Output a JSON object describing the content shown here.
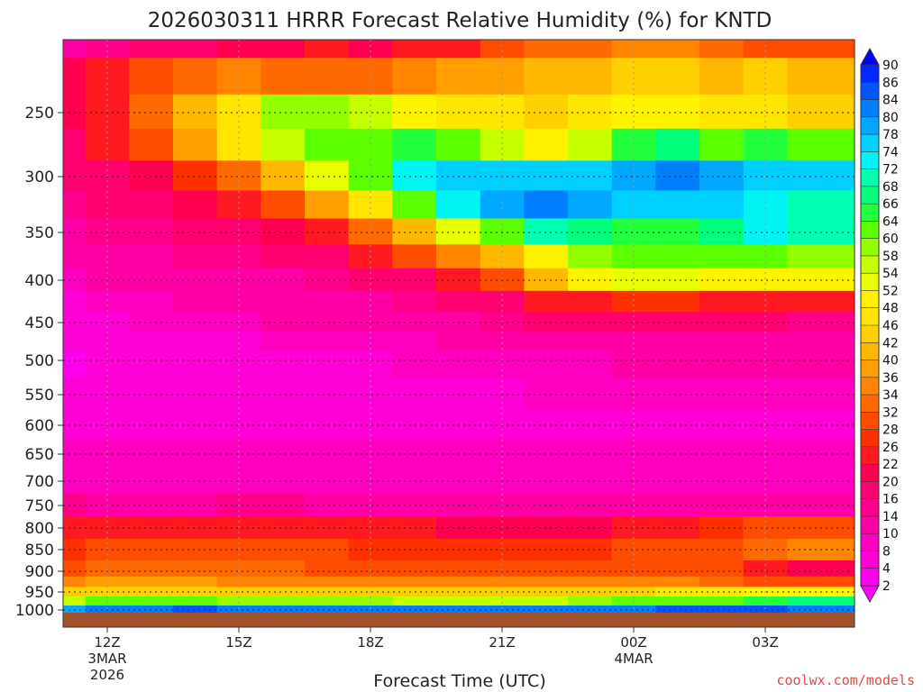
{
  "chart_data": {
    "type": "heatmap",
    "title": "2026030311 HRRR Forecast Relative Humidity (%) for KNTD",
    "xlabel": "Forecast Time (UTC)",
    "ylabel": "",
    "y_axis_scale": "pressure (inverted, log-like)",
    "y_ticks": [
      250,
      300,
      350,
      400,
      450,
      500,
      550,
      600,
      650,
      700,
      750,
      800,
      850,
      900,
      950,
      1000
    ],
    "x_ticks": [
      {
        "label": "12Z",
        "sub1": "3MAR",
        "sub2": "2026"
      },
      {
        "label": "15Z",
        "sub1": "",
        "sub2": ""
      },
      {
        "label": "18Z",
        "sub1": "",
        "sub2": ""
      },
      {
        "label": "21Z",
        "sub1": "",
        "sub2": ""
      },
      {
        "label": "00Z",
        "sub1": "4MAR",
        "sub2": ""
      },
      {
        "label": "03Z",
        "sub1": "",
        "sub2": ""
      }
    ],
    "x_hours": [
      11,
      12,
      13,
      14,
      15,
      16,
      17,
      18,
      19,
      20,
      21,
      22,
      23,
      24,
      25,
      26,
      27,
      28
    ],
    "pressure_levels": [
      200,
      225,
      250,
      275,
      300,
      325,
      350,
      375,
      400,
      425,
      450,
      475,
      500,
      550,
      600,
      650,
      700,
      750,
      800,
      850,
      900,
      925,
      950,
      975,
      1000
    ],
    "rh_values": [
      [
        12,
        14,
        16,
        16,
        20,
        20,
        22,
        20,
        24,
        24,
        28,
        32,
        32,
        34,
        34,
        32,
        30,
        28
      ],
      [
        20,
        24,
        28,
        32,
        34,
        32,
        32,
        32,
        34,
        36,
        38,
        40,
        40,
        42,
        42,
        40,
        42,
        40
      ],
      [
        20,
        24,
        32,
        40,
        46,
        58,
        58,
        56,
        48,
        46,
        46,
        44,
        46,
        48,
        48,
        46,
        46,
        44
      ],
      [
        18,
        22,
        28,
        36,
        46,
        56,
        60,
        62,
        64,
        60,
        56,
        50,
        54,
        64,
        66,
        62,
        64,
        60
      ],
      [
        16,
        18,
        20,
        26,
        32,
        40,
        52,
        62,
        72,
        74,
        76,
        74,
        74,
        78,
        80,
        78,
        76,
        74
      ],
      [
        14,
        16,
        18,
        20,
        24,
        28,
        36,
        46,
        62,
        72,
        78,
        80,
        78,
        76,
        76,
        74,
        72,
        70
      ],
      [
        12,
        14,
        14,
        16,
        18,
        20,
        24,
        32,
        40,
        52,
        62,
        68,
        66,
        64,
        64,
        66,
        72,
        68
      ],
      [
        10,
        12,
        12,
        14,
        14,
        16,
        18,
        22,
        28,
        34,
        40,
        50,
        58,
        62,
        62,
        60,
        60,
        58
      ],
      [
        8,
        10,
        10,
        12,
        12,
        12,
        14,
        16,
        18,
        22,
        28,
        40,
        50,
        52,
        52,
        50,
        50,
        50
      ],
      [
        6,
        8,
        8,
        10,
        10,
        10,
        12,
        12,
        14,
        16,
        18,
        22,
        24,
        26,
        26,
        24,
        22,
        22
      ],
      [
        6,
        6,
        8,
        8,
        8,
        10,
        10,
        10,
        12,
        12,
        14,
        16,
        18,
        18,
        18,
        16,
        16,
        14
      ],
      [
        4,
        4,
        6,
        6,
        6,
        8,
        8,
        8,
        8,
        10,
        10,
        10,
        12,
        12,
        12,
        12,
        12,
        12
      ],
      [
        2,
        4,
        4,
        6,
        6,
        6,
        6,
        6,
        8,
        8,
        8,
        8,
        8,
        10,
        10,
        10,
        10,
        10
      ],
      [
        4,
        4,
        4,
        4,
        4,
        4,
        6,
        6,
        6,
        6,
        6,
        8,
        8,
        8,
        8,
        8,
        8,
        8
      ],
      [
        6,
        6,
        6,
        6,
        6,
        6,
        6,
        6,
        6,
        6,
        6,
        6,
        6,
        6,
        6,
        6,
        6,
        6
      ],
      [
        8,
        8,
        8,
        8,
        8,
        8,
        8,
        8,
        8,
        8,
        8,
        8,
        8,
        8,
        8,
        8,
        8,
        8
      ],
      [
        8,
        8,
        8,
        8,
        8,
        8,
        8,
        8,
        8,
        8,
        8,
        8,
        8,
        8,
        8,
        8,
        8,
        8
      ],
      [
        14,
        12,
        12,
        12,
        14,
        14,
        12,
        12,
        12,
        12,
        12,
        12,
        12,
        12,
        12,
        12,
        12,
        12
      ],
      [
        22,
        22,
        22,
        24,
        22,
        22,
        22,
        22,
        22,
        20,
        20,
        20,
        20,
        22,
        24,
        26,
        28,
        28
      ],
      [
        26,
        28,
        28,
        28,
        28,
        28,
        28,
        26,
        26,
        26,
        26,
        26,
        26,
        28,
        28,
        30,
        32,
        34
      ],
      [
        30,
        32,
        32,
        32,
        32,
        32,
        30,
        30,
        30,
        30,
        30,
        30,
        30,
        30,
        28,
        28,
        22,
        20
      ],
      [
        34,
        36,
        36,
        36,
        34,
        34,
        34,
        34,
        34,
        34,
        34,
        34,
        34,
        34,
        34,
        32,
        30,
        28
      ],
      [
        42,
        44,
        44,
        44,
        44,
        42,
        42,
        42,
        42,
        42,
        42,
        42,
        42,
        44,
        46,
        46,
        48,
        50
      ],
      [
        56,
        60,
        62,
        60,
        58,
        58,
        58,
        58,
        56,
        56,
        56,
        56,
        58,
        60,
        62,
        62,
        64,
        66
      ],
      [
        78,
        80,
        82,
        84,
        82,
        82,
        80,
        80,
        80,
        80,
        80,
        80,
        80,
        82,
        84,
        84,
        84,
        82
      ]
    ],
    "colorbar": {
      "levels": [
        2,
        4,
        8,
        10,
        14,
        16,
        20,
        22,
        26,
        28,
        32,
        34,
        36,
        40,
        42,
        46,
        48,
        52,
        54,
        58,
        60,
        64,
        66,
        68,
        72,
        74,
        78,
        80,
        84,
        86,
        90
      ],
      "colors": [
        "#ff00ff",
        "#ff00ee",
        "#ff00d6",
        "#ff00c0",
        "#ff00a6",
        "#ff008c",
        "#ff0070",
        "#ff0050",
        "#ff1a22",
        "#ff3000",
        "#ff4d00",
        "#ff6a00",
        "#ff8500",
        "#ff9f00",
        "#ffb800",
        "#ffd000",
        "#ffe600",
        "#fff200",
        "#e8ff00",
        "#c6ff00",
        "#94ff00",
        "#5cff00",
        "#22ff3c",
        "#00ff7a",
        "#00ffb0",
        "#00f4f4",
        "#00d0ff",
        "#00a8ff",
        "#0080ff",
        "#0055ff",
        "#0028ff",
        "#0000ff"
      ],
      "extend": "both"
    },
    "grid": true,
    "ground_color": "#a0522d"
  },
  "credit": "coolwx.com/models"
}
